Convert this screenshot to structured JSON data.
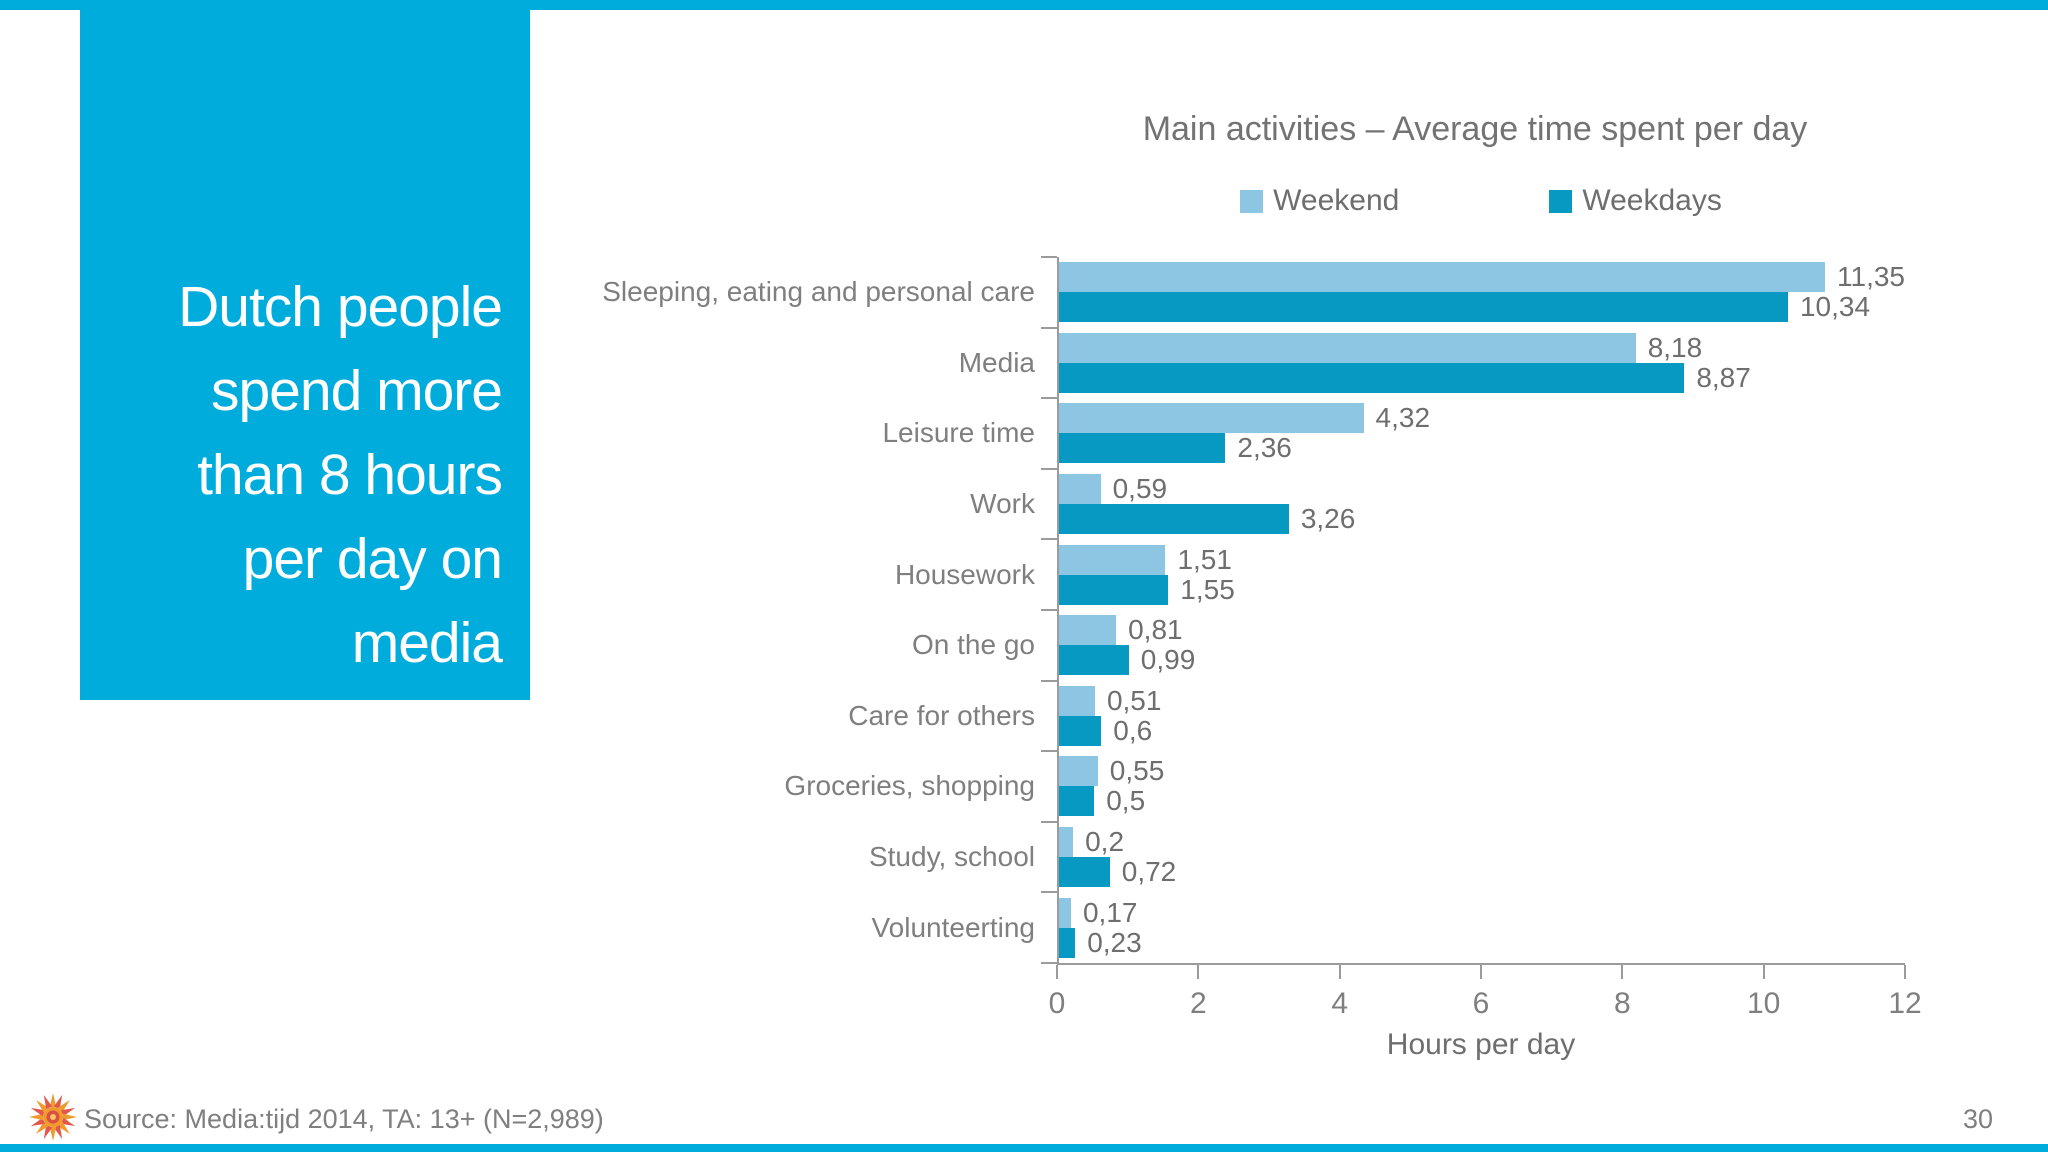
{
  "slide": {
    "headline_lines": [
      "Dutch people",
      "spend more",
      "than 8 hours",
      "per day on",
      "media"
    ],
    "source": "Source: Media:tijd 2014, TA: 13+ (N=2,989)",
    "page_number": "30"
  },
  "colors": {
    "accent_cyan": "#00ACDC",
    "weekend_blue": "#8CC6E3",
    "weekdays_blue": "#0899C2",
    "axis_gray": "#9B9B9B",
    "text_gray": "#7F7F7F"
  },
  "chart_data": {
    "type": "bar",
    "orientation": "horizontal",
    "title": "Main activities – Average time spent per day",
    "xlabel": "Hours per day",
    "xlim": [
      0,
      12
    ],
    "x_ticks": [
      "0",
      "2",
      "4",
      "6",
      "8",
      "10",
      "12"
    ],
    "legend_position": "top",
    "grid": false,
    "categories": [
      "Sleeping, eating and personal care",
      "Media",
      "Leisure time",
      "Work",
      "Housework",
      "On the go",
      "Care for others",
      "Groceries, shopping",
      "Study, school",
      "Volunteerting"
    ],
    "series": [
      {
        "name": "Weekend",
        "color": "#8CC6E3",
        "values": [
          11.35,
          8.18,
          4.32,
          0.59,
          1.51,
          0.81,
          0.51,
          0.55,
          0.2,
          0.17
        ],
        "labels": [
          "11,35",
          "8,18",
          "4,32",
          "0,59",
          "1,51",
          "0,81",
          "0,51",
          "0,55",
          "0,2",
          "0,17"
        ]
      },
      {
        "name": "Weekdays",
        "color": "#0899C2",
        "values": [
          10.34,
          8.87,
          2.36,
          3.26,
          1.55,
          0.99,
          0.6,
          0.5,
          0.72,
          0.23
        ],
        "labels": [
          "10,34",
          "8,87",
          "2,36",
          "3,26",
          "1,55",
          "0,99",
          "0,6",
          "0,5",
          "0,72",
          "0,23"
        ]
      }
    ]
  }
}
